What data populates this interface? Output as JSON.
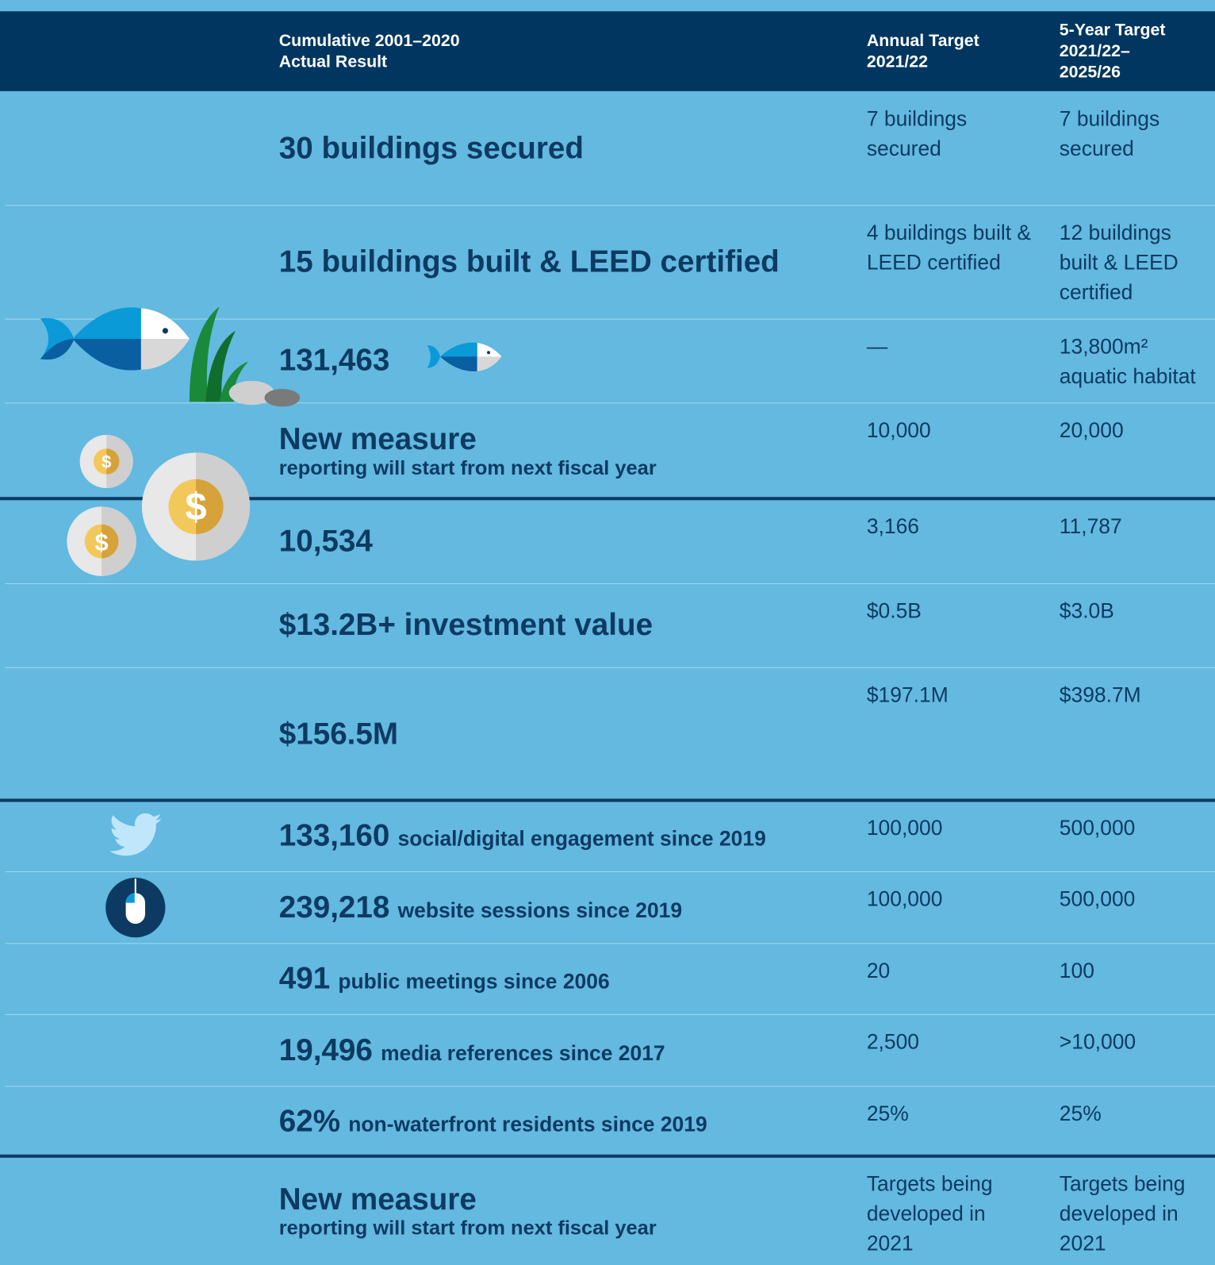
{
  "header": {
    "actual": [
      "Cumulative 2001–2020",
      "Actual Result"
    ],
    "annual": [
      "Annual Target",
      "2021/22"
    ],
    "five_year": [
      "5-Year Target",
      "2021/22–",
      "2025/26"
    ]
  },
  "rows": [
    {
      "actual": "30 buildings secured",
      "annual": "7 buildings secured",
      "five_year": "7 buildings secured"
    },
    {
      "actual": "15 buildings built & LEED certified",
      "annual": "4 buildings built & LEED certified",
      "five_year": "12 buildings built & LEED certified"
    },
    {
      "actual": "131,463",
      "annual": "—",
      "five_year": "13,800m² aquatic habitat"
    },
    {
      "actual": "New measure",
      "actual_subtitle": "reporting will start from next fiscal year",
      "annual": "10,000",
      "five_year": "20,000"
    },
    {
      "actual": "10,534",
      "annual": "3,166",
      "five_year": "11,787"
    },
    {
      "actual": "$13.2B+ investment value",
      "annual": "$0.5B",
      "five_year": "$3.0B"
    },
    {
      "actual": "$156.5M",
      "annual": "$197.1M",
      "five_year": "$398.7M"
    },
    {
      "actual": "133,160",
      "actual_detail": "social/digital engagement since 2019",
      "annual": "100,000",
      "five_year": "500,000"
    },
    {
      "actual": "239,218",
      "actual_detail": "website sessions since 2019",
      "annual": "100,000",
      "five_year": "500,000"
    },
    {
      "actual": "491",
      "actual_detail": "public meetings since 2006",
      "annual": "20",
      "five_year": "100"
    },
    {
      "actual": "19,496",
      "actual_detail": "media references since 2017",
      "annual": "2,500",
      "five_year": ">10,000"
    },
    {
      "actual": "62%",
      "actual_detail": "non-waterfront residents since 2019",
      "annual": "25%",
      "five_year": "25%"
    },
    {
      "actual": "New measure",
      "actual_subtitle": "reporting will start from next fiscal year",
      "annual": "Targets being developed in 2021",
      "five_year": "Targets being developed in 2021"
    }
  ]
}
